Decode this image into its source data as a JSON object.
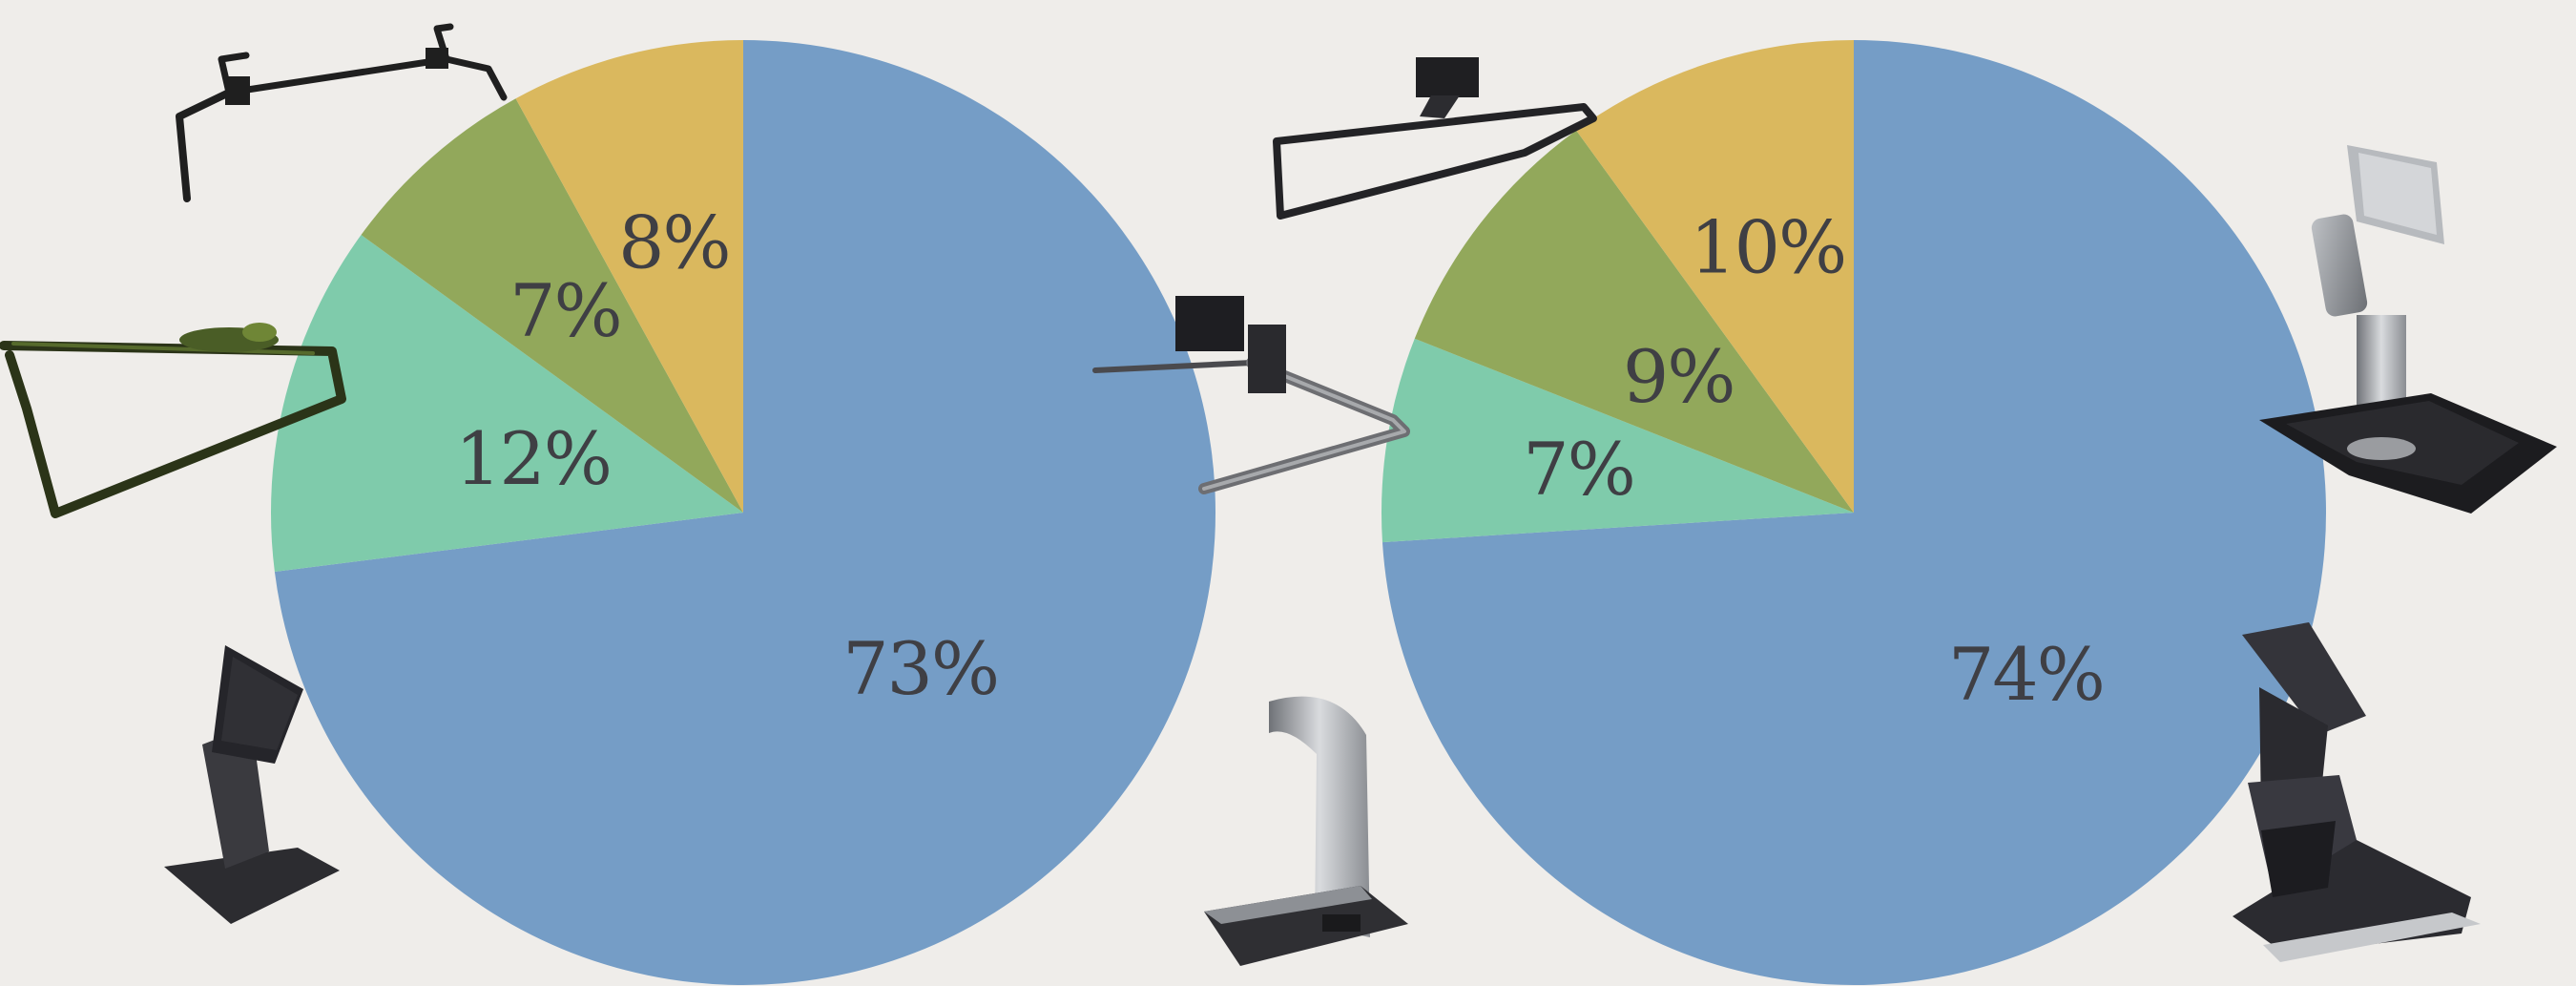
{
  "chart_data": [
    {
      "type": "pie",
      "title": "",
      "slices": [
        {
          "value": 73,
          "label": "73%",
          "color": "#759dc6"
        },
        {
          "value": 12,
          "label": "12%",
          "color": "#7fcbab"
        },
        {
          "value": 7,
          "label": "7%",
          "color": "#92a85b"
        },
        {
          "value": 8,
          "label": "8%",
          "color": "#dab85e"
        }
      ]
    },
    {
      "type": "pie",
      "title": "",
      "slices": [
        {
          "value": 74,
          "label": "74%",
          "color": "#759dc6"
        },
        {
          "value": 7,
          "label": "7%",
          "color": "#7fcbab"
        },
        {
          "value": 9,
          "label": "9%",
          "color": "#92a85b"
        },
        {
          "value": 10,
          "label": "10%",
          "color": "#dab85e"
        }
      ]
    }
  ],
  "stand_images": [
    {
      "name": "bar-bracket-stand-image"
    },
    {
      "name": "wire-loop-stand-image"
    },
    {
      "name": "tilt-touch-stand-image"
    },
    {
      "name": "bent-rod-stand-image"
    },
    {
      "name": "silver-tower-stand-image"
    },
    {
      "name": "rectangle-frame-stand-image"
    },
    {
      "name": "articulating-arm-stand-image"
    },
    {
      "name": "folding-hinge-stand-image"
    }
  ]
}
